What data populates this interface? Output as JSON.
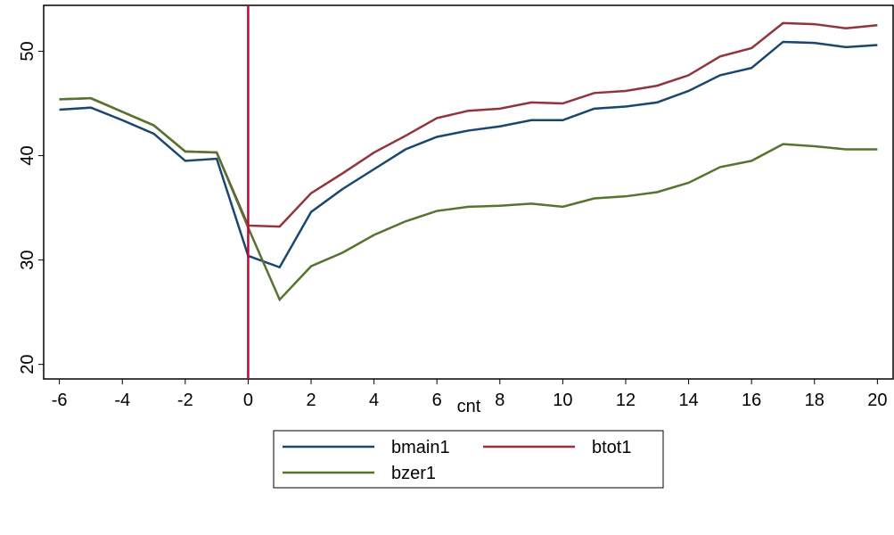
{
  "chart_data": {
    "type": "line",
    "x_label": "cnt",
    "x": [
      -6,
      -5,
      -4,
      -3,
      -2,
      -1,
      0,
      1,
      2,
      3,
      4,
      5,
      6,
      7,
      8,
      9,
      10,
      11,
      12,
      13,
      14,
      15,
      16,
      17,
      18,
      19,
      20
    ],
    "series": [
      {
        "name": "bmain1",
        "color": "#1a476f",
        "values": [
          44.4,
          44.6,
          43.4,
          42.1,
          39.5,
          39.7,
          30.4,
          29.3,
          34.6,
          36.8,
          38.7,
          40.6,
          41.8,
          42.4,
          42.8,
          43.4,
          43.4,
          44.5,
          44.7,
          45.1,
          46.2,
          47.7,
          48.4,
          50.9,
          50.8,
          50.4,
          50.6
        ]
      },
      {
        "name": "btot1",
        "color": "#90353b",
        "values": [
          45.4,
          45.5,
          44.2,
          42.9,
          40.4,
          40.3,
          33.3,
          33.2,
          36.4,
          38.3,
          40.3,
          41.9,
          43.6,
          44.3,
          44.5,
          45.1,
          45.0,
          46.0,
          46.2,
          46.7,
          47.7,
          49.5,
          50.3,
          52.7,
          52.6,
          52.2,
          52.5
        ]
      },
      {
        "name": "bzer1",
        "color": "#55752f",
        "values": [
          45.4,
          45.5,
          44.2,
          42.9,
          40.4,
          40.3,
          33.1,
          26.2,
          29.4,
          30.7,
          32.4,
          33.7,
          34.7,
          35.1,
          35.2,
          35.4,
          35.1,
          35.9,
          36.1,
          36.5,
          37.4,
          38.9,
          39.5,
          41.1,
          40.9,
          40.6,
          40.6
        ]
      }
    ],
    "xlim": [
      -6.5,
      20.5
    ],
    "xticks": [
      -6,
      -4,
      -2,
      0,
      2,
      4,
      6,
      8,
      10,
      12,
      14,
      16,
      18,
      20
    ],
    "ylim": [
      18.6,
      54.4
    ],
    "yticks": [
      20,
      30,
      40,
      50
    ],
    "vline": {
      "x": 0,
      "color": "#c10534"
    },
    "legend": "bottom"
  }
}
